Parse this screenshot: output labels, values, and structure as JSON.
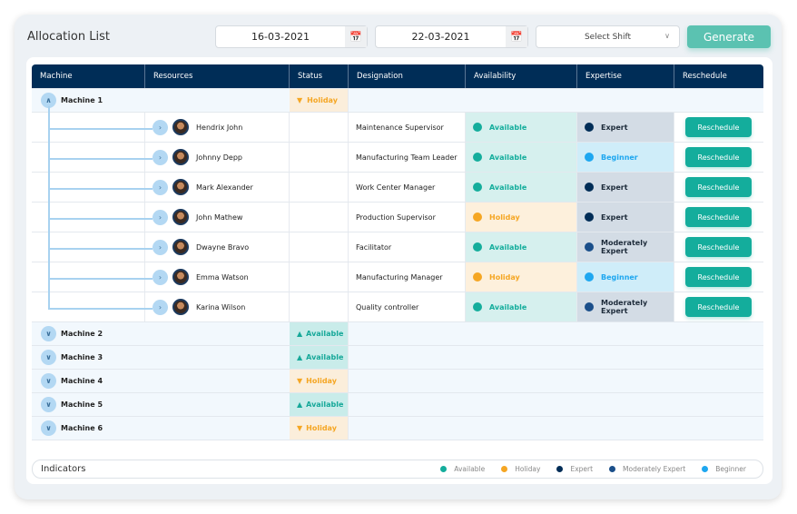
{
  "title": "Allocation List",
  "filters": {
    "start_date": "16-03-2021",
    "end_date": "22-03-2021",
    "shift_placeholder": "Select Shift",
    "generate_label": "Generate"
  },
  "columns": [
    "Machine",
    "Resources",
    "Status",
    "Designation",
    "Availability",
    "Expertise",
    "Reschedule"
  ],
  "colors": {
    "available": "#14ad9c",
    "holiday": "#f5a623",
    "expert": "#002d57",
    "moderately_expert": "#1b4f8a",
    "beginner": "#1ea7f0",
    "header": "#002d57"
  },
  "machine1": {
    "name": "Machine 1",
    "status": "Holiday"
  },
  "resources": [
    {
      "name": "Hendrix John",
      "designation": "Maintenance Supervisor",
      "availability": "Available",
      "expertise": "Expert",
      "action": "Reschedule"
    },
    {
      "name": "Johnny Depp",
      "designation": "Manufacturing Team Leader",
      "availability": "Available",
      "expertise": "Beginner",
      "action": "Reschedule"
    },
    {
      "name": "Mark Alexander",
      "designation": "Work Center Manager",
      "availability": "Available",
      "expertise": "Expert",
      "action": "Reschedule"
    },
    {
      "name": "John Mathew",
      "designation": "Production Supervisor",
      "availability": "Holiday",
      "expertise": "Expert",
      "action": "Reschedule"
    },
    {
      "name": "Dwayne Bravo",
      "designation": "Facilitator",
      "availability": "Available",
      "expertise": "Moderately Expert",
      "action": "Reschedule"
    },
    {
      "name": "Emma Watson",
      "designation": "Manufacturing Manager",
      "availability": "Holiday",
      "expertise": "Beginner",
      "action": "Reschedule"
    },
    {
      "name": "Karina Wilson",
      "designation": "Quality controller",
      "availability": "Available",
      "expertise": "Moderately Expert",
      "action": "Reschedule"
    }
  ],
  "machines": [
    {
      "name": "Machine 2",
      "status": "Available"
    },
    {
      "name": "Machine 3",
      "status": "Available"
    },
    {
      "name": "Machine 4",
      "status": "Holiday"
    },
    {
      "name": "Machine 5",
      "status": "Available"
    },
    {
      "name": "Machine 6",
      "status": "Holiday"
    }
  ],
  "indicators": {
    "title": "Indicators",
    "items": [
      "Available",
      "Holiday",
      "Expert",
      "Moderately Expert",
      "Beginner"
    ]
  }
}
